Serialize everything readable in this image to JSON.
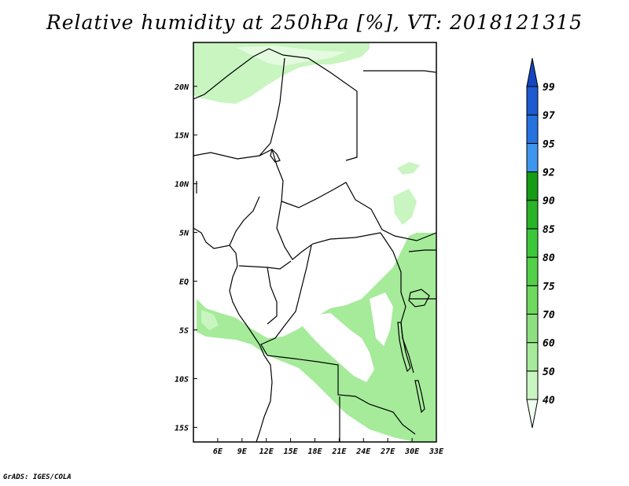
{
  "title": "Relative humidity at 250hPa [%], VT: 2018121315",
  "credit": "GrADS: IGES/COLA",
  "map": {
    "lon_range": [
      3,
      33
    ],
    "lat_range": [
      -16.5,
      24.5
    ],
    "lon_ticks": [
      "6E",
      "9E",
      "12E",
      "15E",
      "18E",
      "21E",
      "24E",
      "27E",
      "30E",
      "33E"
    ],
    "lat_ticks": [
      "20N",
      "15N",
      "10N",
      "5N",
      "EQ",
      "5S",
      "10S",
      "15S"
    ]
  },
  "colorbar": {
    "levels": [
      "40",
      "50",
      "60",
      "70",
      "75",
      "80",
      "85",
      "90",
      "92",
      "95",
      "97",
      "99"
    ],
    "colors": [
      "#f0fff0",
      "#c8f5c0",
      "#a5eb9a",
      "#8ce080",
      "#6ed95e",
      "#52d048",
      "#3cc83a",
      "#28b426",
      "#159b14",
      "#3f96ee",
      "#2673e0",
      "#1e5ad0",
      "#1446c0"
    ],
    "extends": "both"
  }
}
